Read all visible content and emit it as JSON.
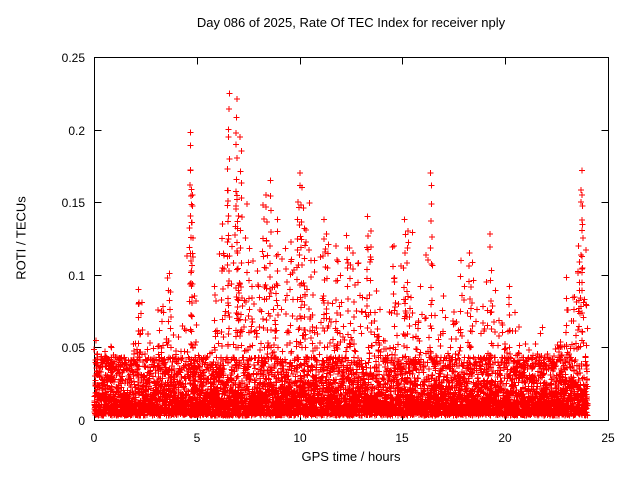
{
  "chart_data": {
    "type": "scatter",
    "title": "Day 086 of 2025, Rate Of TEC Index for receiver nply",
    "xlabel": "GPS time / hours",
    "ylabel": "ROTI / TECUs",
    "xlim": [
      0,
      25
    ],
    "ylim": [
      0,
      0.25
    ],
    "xticks": [
      0,
      5,
      10,
      15,
      20,
      25
    ],
    "xtick_labels": [
      "0",
      "5",
      "10",
      "15",
      "20",
      "25"
    ],
    "yticks": [
      0,
      0.05,
      0.1,
      0.15,
      0.2,
      0.25
    ],
    "ytick_labels": [
      "0",
      "0.05",
      "0.1",
      "0.15",
      "0.2",
      "0.25"
    ],
    "marker": "+",
    "color": "#ff0000",
    "grid": false,
    "legend": "none",
    "band": {
      "floor": 0.002,
      "dense_top": 0.045
    },
    "points_per_bin": 150,
    "envelope_bins": {
      "start": 0,
      "dx": 0.5,
      "max": [
        0.065,
        0.06,
        0.05,
        0.07,
        0.09,
        0.065,
        0.08,
        0.1,
        0.07,
        0.13,
        0.045,
        0.09,
        0.14,
        0.16,
        0.15,
        0.12,
        0.14,
        0.14,
        0.12,
        0.15,
        0.15,
        0.11,
        0.13,
        0.12,
        0.12,
        0.11,
        0.13,
        0.09,
        0.08,
        0.12,
        0.13,
        0.1,
        0.12,
        0.09,
        0.08,
        0.11,
        0.11,
        0.09,
        0.12,
        0.1,
        0.09,
        0.075,
        0.06,
        0.065,
        0.065,
        0.09,
        0.085,
        0.12
      ]
    },
    "spikes": [
      {
        "x": 2.2,
        "ymax": 0.09
      },
      {
        "x": 3.7,
        "ymax": 0.101
      },
      {
        "x": 4.68,
        "ymax": 0.198
      },
      {
        "x": 4.73,
        "ymax": 0.172
      },
      {
        "x": 4.79,
        "ymax": 0.155
      },
      {
        "x": 5.9,
        "ymax": 0.092
      },
      {
        "x": 6.25,
        "ymax": 0.135
      },
      {
        "x": 6.5,
        "ymax": 0.158
      },
      {
        "x": 6.55,
        "ymax": 0.225
      },
      {
        "x": 6.95,
        "ymax": 0.221
      },
      {
        "x": 7.0,
        "ymax": 0.152
      },
      {
        "x": 7.15,
        "ymax": 0.195
      },
      {
        "x": 7.55,
        "ymax": 0.118
      },
      {
        "x": 8.25,
        "ymax": 0.148
      },
      {
        "x": 8.4,
        "ymax": 0.155
      },
      {
        "x": 8.6,
        "ymax": 0.165
      },
      {
        "x": 8.9,
        "ymax": 0.138
      },
      {
        "x": 9.35,
        "ymax": 0.118
      },
      {
        "x": 9.9,
        "ymax": 0.15
      },
      {
        "x": 10.0,
        "ymax": 0.17
      },
      {
        "x": 10.1,
        "ymax": 0.16
      },
      {
        "x": 10.25,
        "ymax": 0.132
      },
      {
        "x": 10.6,
        "ymax": 0.11
      },
      {
        "x": 11.2,
        "ymax": 0.138
      },
      {
        "x": 11.35,
        "ymax": 0.128
      },
      {
        "x": 11.8,
        "ymax": 0.12
      },
      {
        "x": 12.3,
        "ymax": 0.127
      },
      {
        "x": 12.65,
        "ymax": 0.115
      },
      {
        "x": 13.3,
        "ymax": 0.14
      },
      {
        "x": 13.45,
        "ymax": 0.13
      },
      {
        "x": 14.6,
        "ymax": 0.12
      },
      {
        "x": 15.1,
        "ymax": 0.138
      },
      {
        "x": 15.25,
        "ymax": 0.13
      },
      {
        "x": 16.4,
        "ymax": 0.17
      },
      {
        "x": 17.85,
        "ymax": 0.11
      },
      {
        "x": 18.3,
        "ymax": 0.115
      },
      {
        "x": 19.3,
        "ymax": 0.128
      },
      {
        "x": 20.2,
        "ymax": 0.092
      },
      {
        "x": 23.0,
        "ymax": 0.098
      },
      {
        "x": 23.6,
        "ymax": 0.12
      },
      {
        "x": 23.7,
        "ymax": 0.172
      },
      {
        "x": 23.78,
        "ymax": 0.155
      }
    ]
  }
}
